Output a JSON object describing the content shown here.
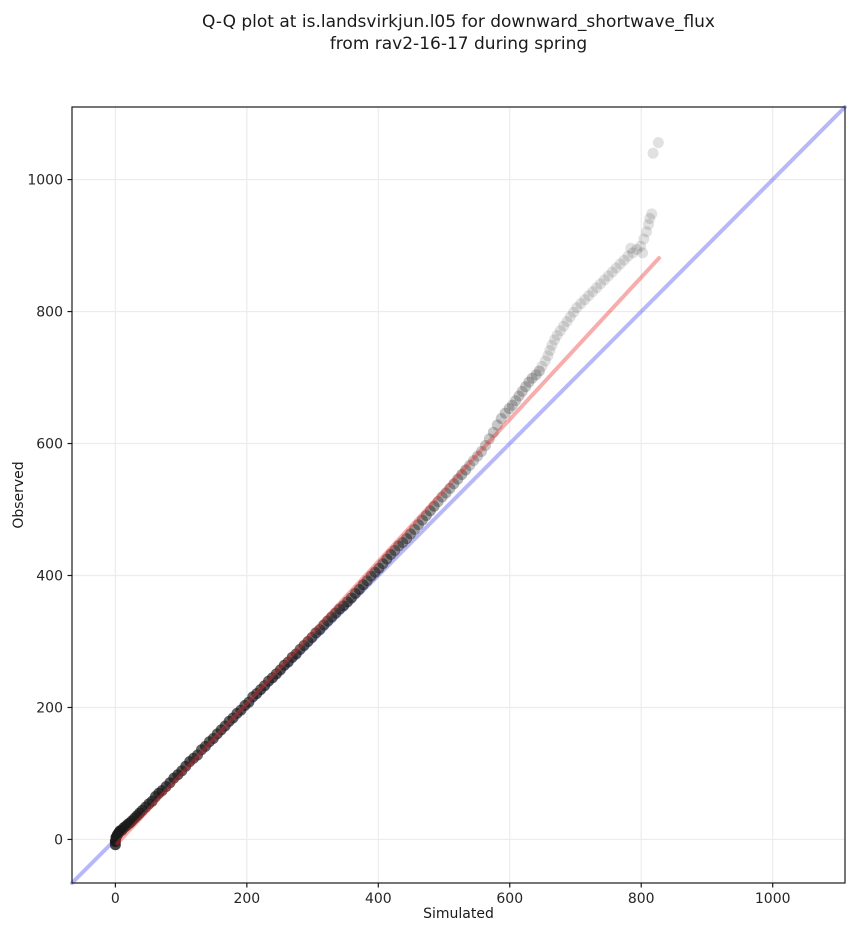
{
  "title": {
    "line1": "Q-Q plot at is.landsvirkjun.l05 for downward_shortwave_flux",
    "line2": "from rav2-16-17 during spring"
  },
  "axes": {
    "x_label": "Simulated",
    "y_label": "Observed",
    "x_ticks": [
      0,
      200,
      400,
      600,
      800,
      1000
    ],
    "y_ticks": [
      0,
      200,
      400,
      600,
      800,
      1000
    ],
    "x_range": [
      -66,
      1110
    ],
    "y_range": [
      -66,
      1110
    ],
    "grid": true
  },
  "colors": {
    "background": "#ffffff",
    "grid": "#ececec",
    "spine": "#1a1a1a",
    "tick_text": "#262626",
    "identity_line": "#4444ee",
    "identity_opacity": 0.38,
    "fit_line": "#ee3333",
    "fit_opacity": 0.4,
    "marker": "#1a1a1a"
  },
  "chart_data": {
    "type": "scatter",
    "title": "Q-Q plot at is.landsvirkjun.l05 for downward_shortwave_flux from rav2-16-17 during spring",
    "xlabel": "Simulated",
    "ylabel": "Observed",
    "xlim": [
      -66,
      1110
    ],
    "ylim": [
      -66,
      1110
    ],
    "legend": "none",
    "grid": true,
    "identity_line": {
      "from": [
        -66,
        -66
      ],
      "to": [
        1110,
        1110
      ]
    },
    "fit_line": {
      "from": [
        3,
        -6
      ],
      "to": [
        827,
        881
      ]
    },
    "marker": {
      "radius_px": 5.5,
      "base_alpha": 0.13
    },
    "points_note": "each point is [simulated, observed, stack_weight] where stack_weight approximates the number of overlapping quantile points",
    "points": [
      [
        0,
        -3,
        26
      ],
      [
        1,
        3,
        22
      ],
      [
        0,
        -8,
        12
      ],
      [
        3,
        7,
        18
      ],
      [
        5,
        10,
        15
      ],
      [
        7,
        13,
        13
      ],
      [
        10,
        14,
        12
      ],
      [
        13,
        18,
        11
      ],
      [
        16,
        20,
        11
      ],
      [
        19,
        23,
        10
      ],
      [
        22,
        25,
        10
      ],
      [
        25,
        28,
        10
      ],
      [
        29,
        32,
        10
      ],
      [
        33,
        36,
        10
      ],
      [
        37,
        40,
        10
      ],
      [
        41,
        44,
        9
      ],
      [
        46,
        49,
        9
      ],
      [
        51,
        54,
        9
      ],
      [
        56,
        58,
        9
      ],
      [
        61,
        65,
        9
      ],
      [
        66,
        70,
        9
      ],
      [
        71,
        74,
        9
      ],
      [
        77,
        80,
        9
      ],
      [
        83,
        86,
        9
      ],
      [
        89,
        93,
        9
      ],
      [
        95,
        98,
        9
      ],
      [
        101,
        104,
        9
      ],
      [
        107,
        111,
        9
      ],
      [
        113,
        118,
        9
      ],
      [
        119,
        123,
        8
      ],
      [
        125,
        128,
        8
      ],
      [
        131,
        136,
        8
      ],
      [
        137,
        141,
        8
      ],
      [
        143,
        148,
        8
      ],
      [
        149,
        153,
        8
      ],
      [
        155,
        160,
        8
      ],
      [
        161,
        166,
        8
      ],
      [
        167,
        172,
        8
      ],
      [
        173,
        179,
        8
      ],
      [
        179,
        184,
        8
      ],
      [
        185,
        191,
        8
      ],
      [
        191,
        196,
        8
      ],
      [
        197,
        203,
        8
      ],
      [
        203,
        208,
        8
      ],
      [
        209,
        216,
        8
      ],
      [
        215,
        221,
        8
      ],
      [
        221,
        227,
        8
      ],
      [
        227,
        233,
        8
      ],
      [
        233,
        240,
        8
      ],
      [
        239,
        245,
        8
      ],
      [
        245,
        251,
        8
      ],
      [
        251,
        257,
        8
      ],
      [
        257,
        264,
        8
      ],
      [
        263,
        269,
        8
      ],
      [
        269,
        276,
        8
      ],
      [
        275,
        281,
        8
      ],
      [
        281,
        288,
        7
      ],
      [
        287,
        294,
        7
      ],
      [
        293,
        300,
        7
      ],
      [
        299,
        306,
        7
      ],
      [
        305,
        313,
        7
      ],
      [
        311,
        318,
        7
      ],
      [
        317,
        325,
        7
      ],
      [
        323,
        331,
        7
      ],
      [
        329,
        337,
        7
      ],
      [
        335,
        343,
        7
      ],
      [
        341,
        349,
        7
      ],
      [
        347,
        354,
        7
      ],
      [
        353,
        360,
        7
      ],
      [
        359,
        366,
        7
      ],
      [
        365,
        373,
        7
      ],
      [
        371,
        379,
        7
      ],
      [
        377,
        386,
        7
      ],
      [
        383,
        392,
        6
      ],
      [
        389,
        399,
        6
      ],
      [
        395,
        405,
        6
      ],
      [
        401,
        411,
        6
      ],
      [
        407,
        418,
        6
      ],
      [
        413,
        425,
        6
      ],
      [
        419,
        432,
        6
      ],
      [
        425,
        438,
        5
      ],
      [
        431,
        445,
        5
      ],
      [
        437,
        450,
        5
      ],
      [
        443,
        456,
        5
      ],
      [
        449,
        463,
        5
      ],
      [
        455,
        470,
        4
      ],
      [
        461,
        477,
        4
      ],
      [
        467,
        484,
        4
      ],
      [
        473,
        491,
        4
      ],
      [
        479,
        498,
        4
      ],
      [
        485,
        505,
        4
      ],
      [
        491,
        512,
        3
      ],
      [
        497,
        519,
        3
      ],
      [
        503,
        525,
        3
      ],
      [
        509,
        532,
        3
      ],
      [
        515,
        539,
        3
      ],
      [
        521,
        546,
        3
      ],
      [
        527,
        553,
        3
      ],
      [
        533,
        560,
        3
      ],
      [
        539,
        567,
        2
      ],
      [
        545,
        574,
        2
      ],
      [
        551,
        581,
        2
      ],
      [
        557,
        588,
        2
      ],
      [
        563,
        597,
        2
      ],
      [
        569,
        607,
        2
      ],
      [
        575,
        617,
        2
      ],
      [
        581,
        628,
        2
      ],
      [
        587,
        638,
        2
      ],
      [
        593,
        646,
        2
      ],
      [
        599,
        653,
        2
      ],
      [
        604,
        658,
        2
      ],
      [
        609,
        665,
        2
      ],
      [
        614,
        672,
        2
      ],
      [
        619,
        679,
        2
      ],
      [
        624,
        686,
        2
      ],
      [
        629,
        693,
        2
      ],
      [
        634,
        699,
        2
      ],
      [
        640,
        704,
        2
      ],
      [
        645,
        710,
        2
      ],
      [
        649,
        717,
        1
      ],
      [
        654,
        725,
        1
      ],
      [
        658,
        733,
        1
      ],
      [
        661,
        741,
        1
      ],
      [
        664,
        749,
        1
      ],
      [
        668,
        757,
        1
      ],
      [
        672,
        764,
        1
      ],
      [
        677,
        771,
        1
      ],
      [
        682,
        778,
        1
      ],
      [
        687,
        785,
        1
      ],
      [
        692,
        792,
        1
      ],
      [
        697,
        799,
        1
      ],
      [
        702,
        806,
        1
      ],
      [
        708,
        812,
        1
      ],
      [
        714,
        818,
        1
      ],
      [
        720,
        824,
        1
      ],
      [
        726,
        830,
        1
      ],
      [
        732,
        836,
        1
      ],
      [
        738,
        842,
        1
      ],
      [
        744,
        848,
        1
      ],
      [
        750,
        854,
        1
      ],
      [
        756,
        860,
        1
      ],
      [
        762,
        866,
        1
      ],
      [
        768,
        872,
        1
      ],
      [
        774,
        878,
        1
      ],
      [
        780,
        884,
        1
      ],
      [
        784,
        896,
        1
      ],
      [
        787,
        889,
        1
      ],
      [
        793,
        894,
        1
      ],
      [
        799,
        899,
        1
      ],
      [
        802,
        889,
        1
      ],
      [
        804,
        910,
        1
      ],
      [
        808,
        921,
        1
      ],
      [
        811,
        932,
        1
      ],
      [
        813,
        941,
        1
      ],
      [
        816,
        948,
        1
      ],
      [
        818,
        1040,
        1
      ],
      [
        826,
        1056,
        1
      ]
    ]
  }
}
